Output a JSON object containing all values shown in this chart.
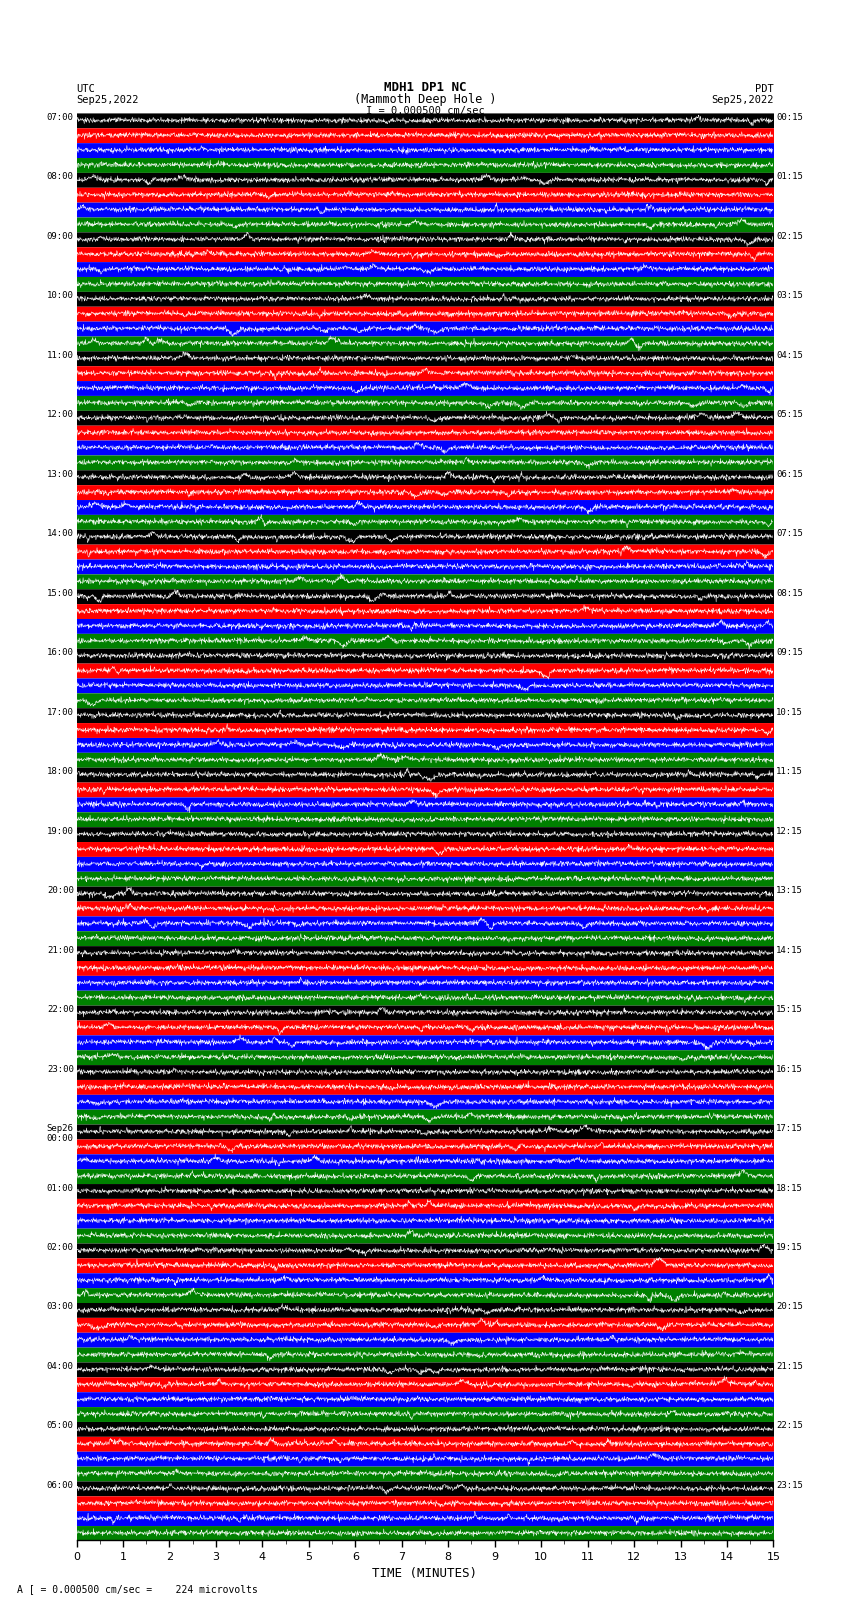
{
  "title_line1": "MDH1 DP1 NC",
  "title_line2": "(Mammoth Deep Hole )",
  "scale_label": "I = 0.000500 cm/sec",
  "left_timezone": "UTC",
  "left_date": "Sep25,2022",
  "right_timezone": "PDT",
  "right_date": "Sep25,2022",
  "bottom_label": "TIME (MINUTES)",
  "bottom_note": "A [ = 0.000500 cm/sec =    224 microvolts",
  "utc_labels": [
    "07:00",
    "08:00",
    "09:00",
    "10:00",
    "11:00",
    "12:00",
    "13:00",
    "14:00",
    "15:00",
    "16:00",
    "17:00",
    "18:00",
    "19:00",
    "20:00",
    "21:00",
    "22:00",
    "23:00",
    "Sep26\n00:00",
    "01:00",
    "02:00",
    "03:00",
    "04:00",
    "05:00",
    "06:00"
  ],
  "pdt_labels": [
    "00:15",
    "01:15",
    "02:15",
    "03:15",
    "04:15",
    "05:15",
    "06:15",
    "07:15",
    "08:15",
    "09:15",
    "10:15",
    "11:15",
    "12:15",
    "13:15",
    "14:15",
    "15:15",
    "16:15",
    "17:15",
    "18:15",
    "19:15",
    "20:15",
    "21:15",
    "22:15",
    "23:15"
  ],
  "num_rows": 24,
  "traces_per_row": 4,
  "row_colors": [
    "black",
    "red",
    "blue",
    "green"
  ],
  "background_color": "white",
  "minutes_per_row": 15,
  "xlim": [
    0,
    15
  ],
  "fig_width": 8.5,
  "fig_height": 16.13
}
